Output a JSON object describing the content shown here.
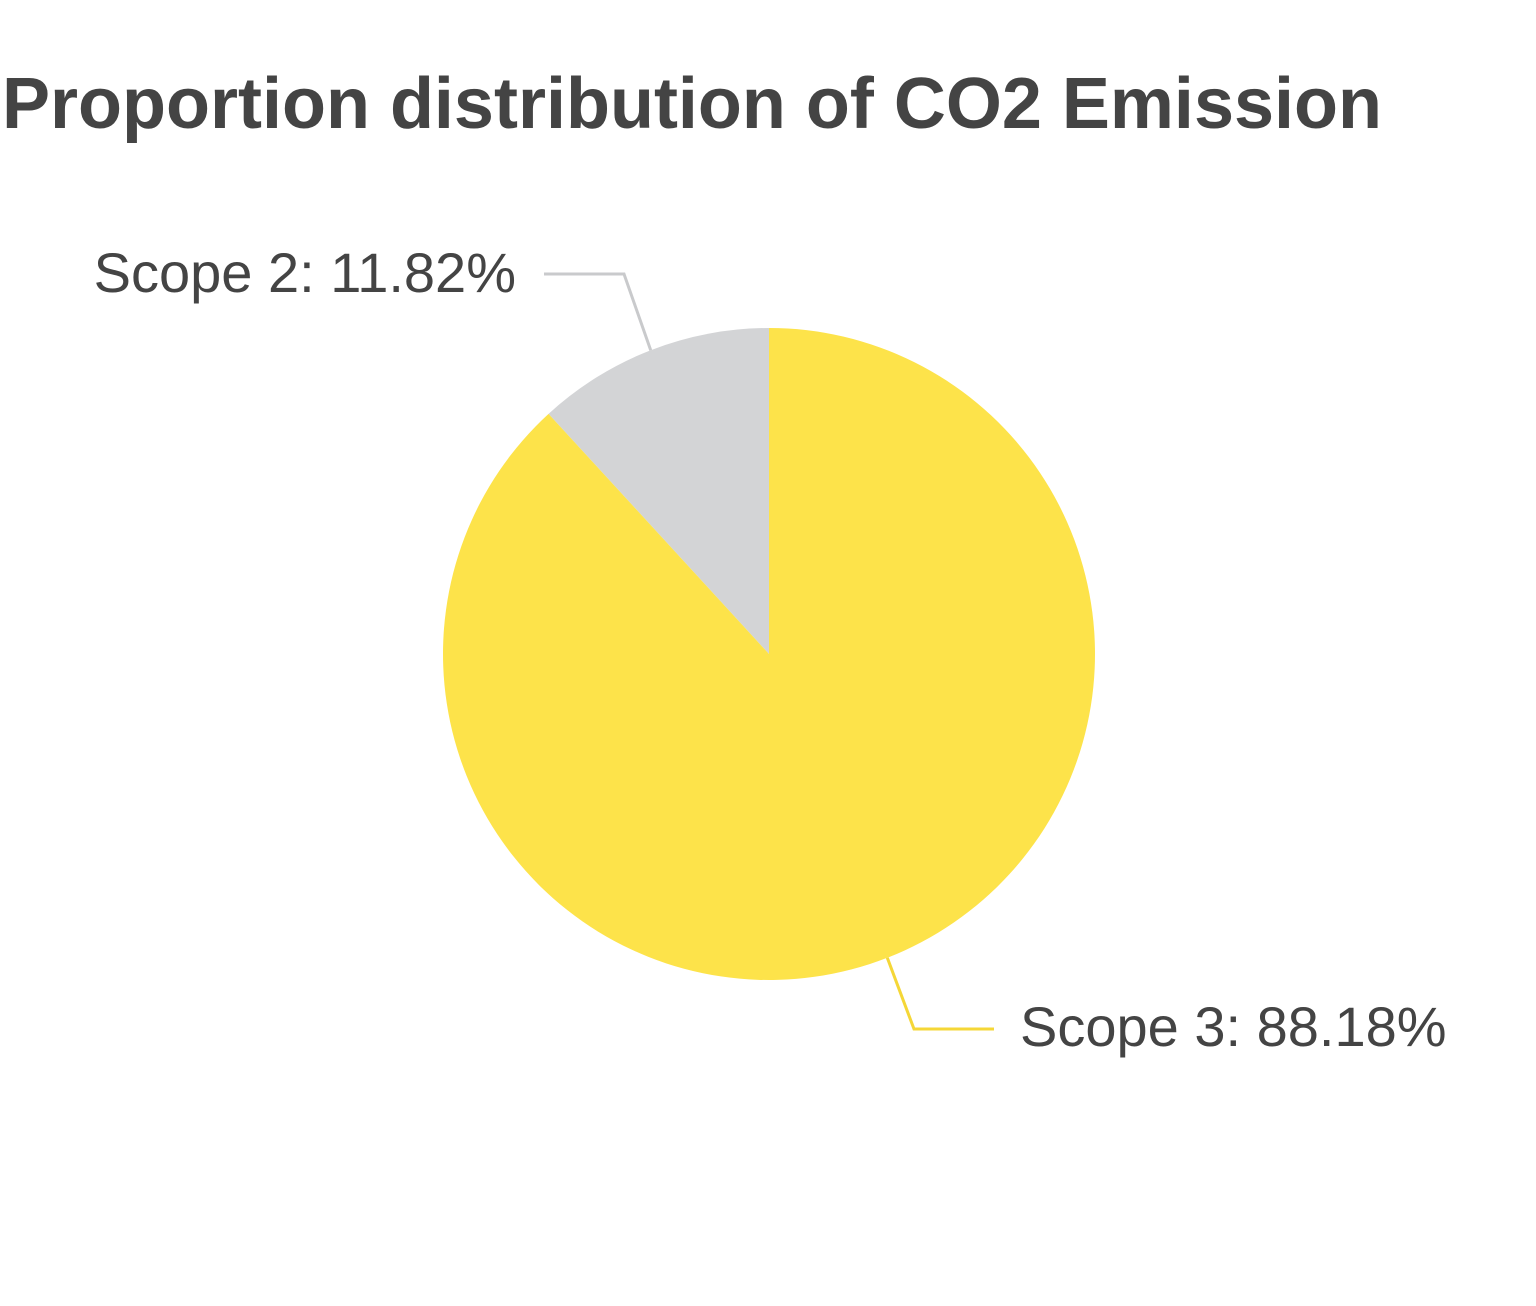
{
  "chart_data": {
    "type": "pie",
    "title": "Proportion distribution of CO2 Emission",
    "slices": [
      {
        "name": "Scope 2",
        "value": 11.82,
        "label": "Scope 2: 11.82%",
        "color": "#d3d4d6"
      },
      {
        "name": "Scope 3",
        "value": 88.18,
        "label": "Scope 3: 88.18%",
        "color": "#fde34a"
      }
    ],
    "legend": "none",
    "label_style": "outside with leader lines"
  }
}
